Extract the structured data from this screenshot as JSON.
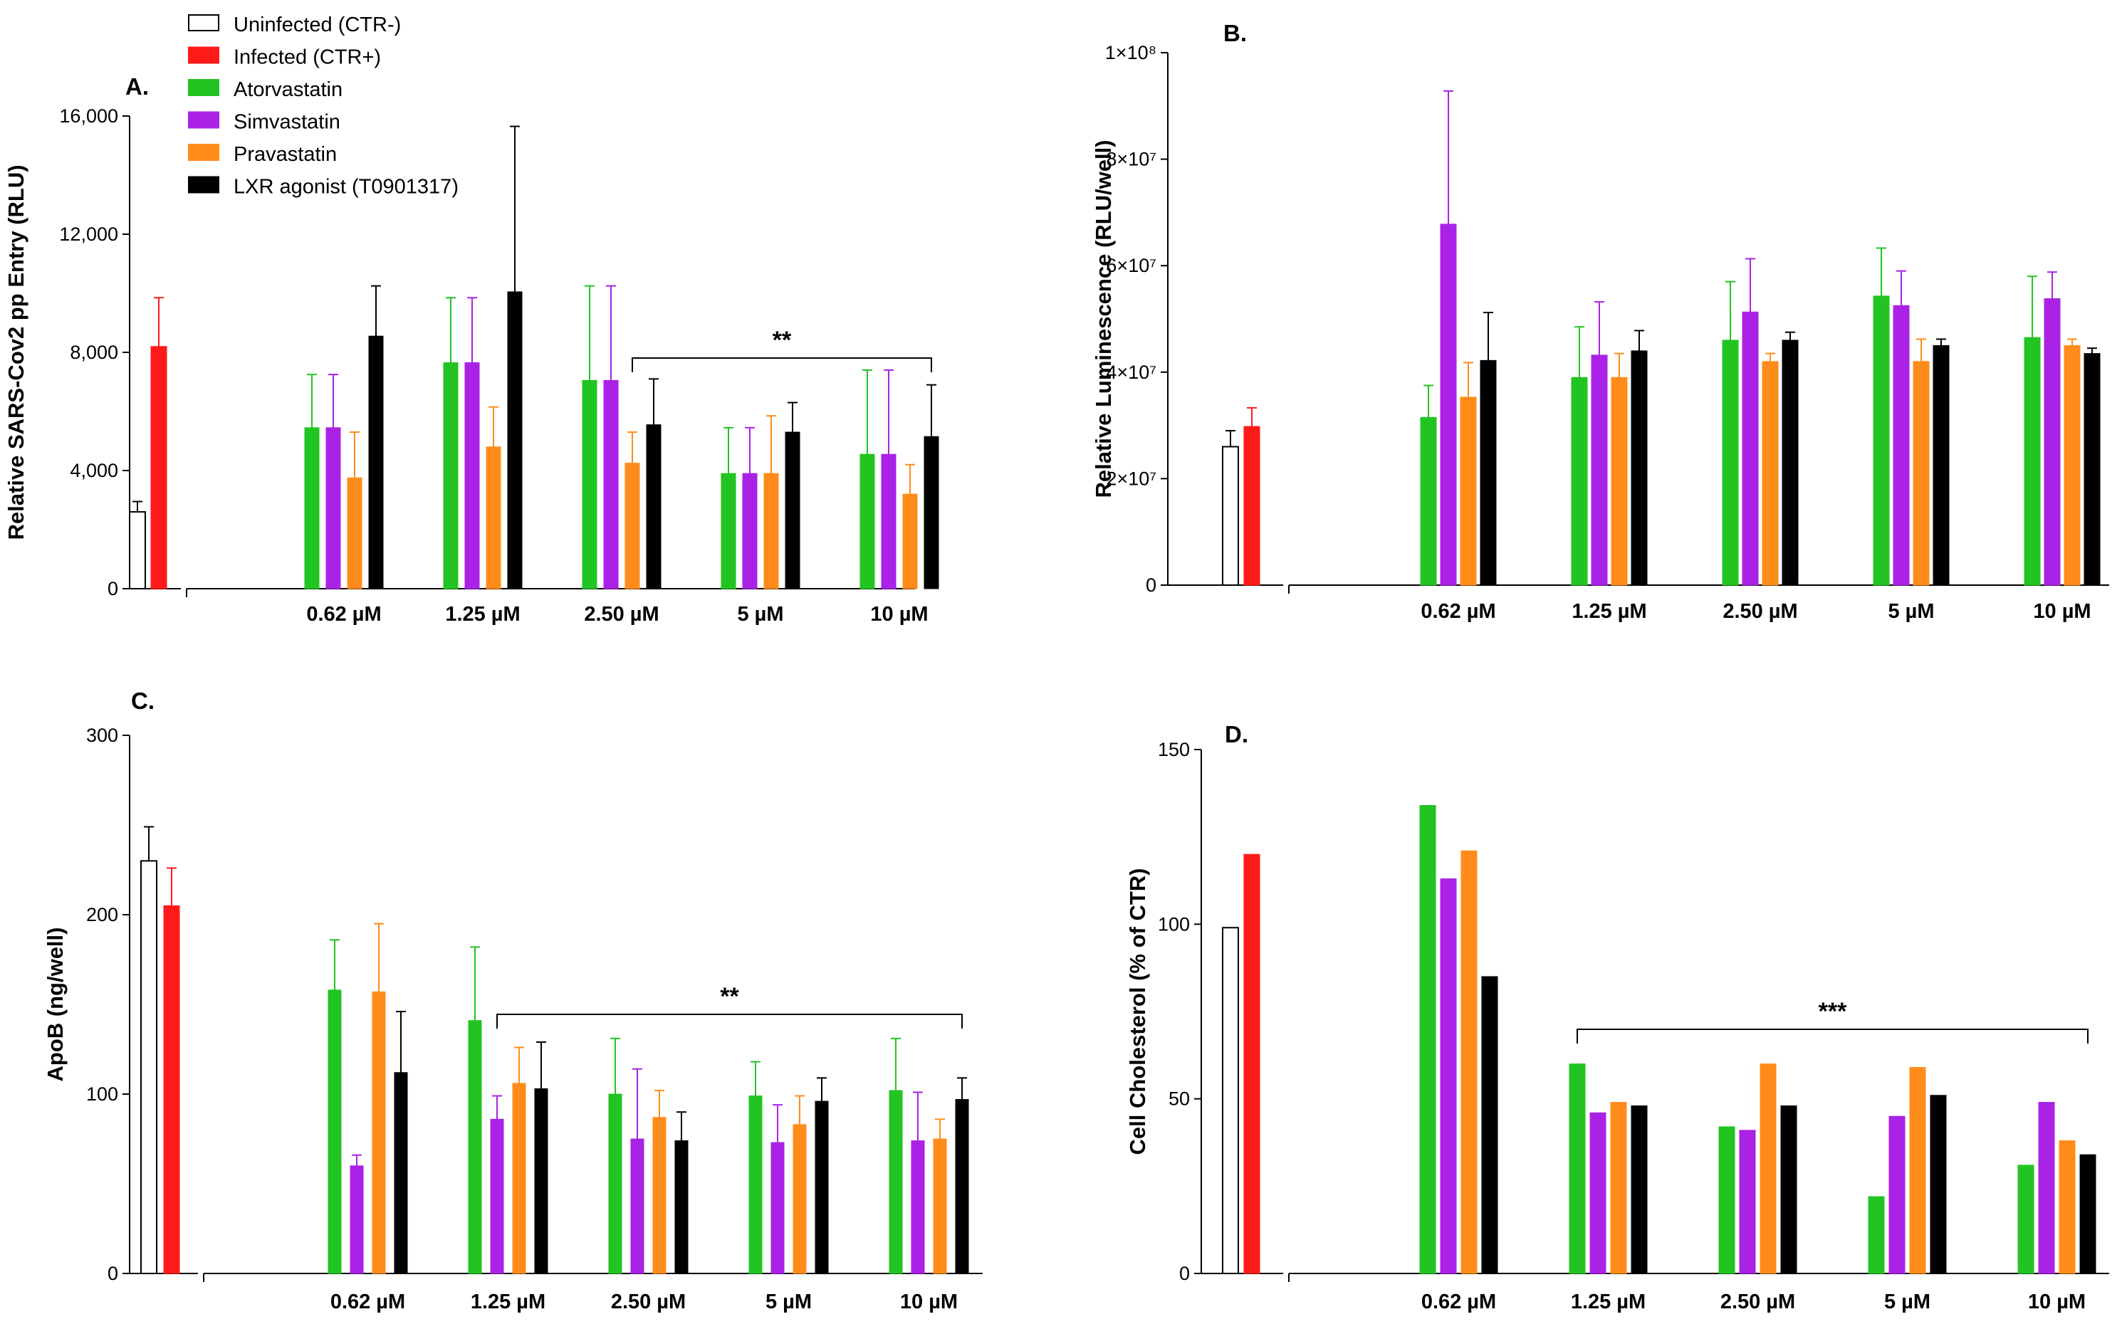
{
  "legend": [
    {
      "label": "Uninfected (CTR-)",
      "key": "ctr_minus"
    },
    {
      "label": "Infected (CTR+)",
      "key": "ctr_plus"
    },
    {
      "label": "Atorvastatin",
      "key": "atorvastatin"
    },
    {
      "label": "Simvastatin",
      "key": "simvastatin"
    },
    {
      "label": "Pravastatin",
      "key": "pravastatin"
    },
    {
      "label": "LXR agonist (T0901317)",
      "key": "lxr"
    }
  ],
  "colors": {
    "ctr_minus": "#ffffff",
    "ctr_plus": "#ff1a1a",
    "atorvastatin": "#22c422",
    "simvastatin": "#aa22e6",
    "pravastatin": "#ff8c1a",
    "lxr": "#000000"
  },
  "chart_data": [
    {
      "panel": "A.",
      "type": "bar",
      "ylabel": "Relative SARS-Cov2 pp Entry (RLU)",
      "ylim": [
        0,
        16000
      ],
      "yticks": [
        0,
        4000,
        8000,
        12000,
        16000
      ],
      "ytick_labels": [
        "0",
        "4,000",
        "8,000",
        "12,000",
        "16,000"
      ],
      "controls": [
        {
          "key": "ctr_minus",
          "value": 2600,
          "err": 350
        },
        {
          "key": "ctr_plus",
          "value": 8200,
          "err": 1650
        }
      ],
      "categories": [
        "0.62 µM",
        "1.25 µM",
        "2.50 µM",
        "5 µM",
        "10 µM"
      ],
      "series": [
        {
          "name": "Atorvastatin",
          "key": "atorvastatin",
          "values": [
            5450,
            7650,
            7050,
            3900,
            4550
          ],
          "errors": [
            1800,
            2200,
            3200,
            1550,
            2850
          ]
        },
        {
          "name": "Simvastatin",
          "key": "simvastatin",
          "values": [
            5450,
            7650,
            7050,
            3900,
            4550
          ],
          "errors": [
            1800,
            2200,
            3200,
            1550,
            2850
          ]
        },
        {
          "name": "Pravastatin",
          "key": "pravastatin",
          "values": [
            3750,
            4800,
            4250,
            3900,
            3200
          ],
          "errors": [
            1550,
            1350,
            1050,
            1950,
            1000
          ]
        },
        {
          "name": "LXR agonist (T0901317)",
          "key": "lxr",
          "values": [
            8550,
            10050,
            5550,
            5300,
            5150
          ],
          "errors": [
            1700,
            5600,
            1550,
            1000,
            1750
          ]
        }
      ],
      "significance": {
        "label": "**",
        "from_category": 2,
        "from_series": 2,
        "to_category": 4
      }
    },
    {
      "panel": "B.",
      "type": "bar",
      "ylabel": "Relative Luminescence (RLU/well)",
      "ylim": [
        0,
        100000000
      ],
      "yticks": [
        0,
        20000000,
        40000000,
        60000000,
        80000000,
        100000000
      ],
      "ytick_labels": [
        "0",
        "2×10⁷",
        "4×10⁷",
        "6×10⁷",
        "8×10⁷",
        "1×10⁸"
      ],
      "controls": [
        {
          "key": "ctr_minus",
          "value": 26000000,
          "err": 3000000
        },
        {
          "key": "ctr_plus",
          "value": 29800000,
          "err": 3500000
        }
      ],
      "categories": [
        "0.62 µM",
        "1.25 µM",
        "2.50 µM",
        "5 µM",
        "10 µM"
      ],
      "series": [
        {
          "name": "Atorvastatin",
          "key": "atorvastatin",
          "values": [
            31500000,
            39000000,
            46000000,
            54300000,
            46500000
          ],
          "errors": [
            6000000,
            9500000,
            11000000,
            9000000,
            11500000
          ]
        },
        {
          "name": "Simvastatin",
          "key": "simvastatin",
          "values": [
            67800000,
            43200000,
            51300000,
            52500000,
            53800000
          ],
          "errors": [
            25000000,
            10000000,
            10000000,
            6500000,
            5000000
          ]
        },
        {
          "name": "Pravastatin",
          "key": "pravastatin",
          "values": [
            35300000,
            39000000,
            42000000,
            42000000,
            45000000
          ],
          "errors": [
            6500000,
            4500000,
            1500000,
            4200000,
            1200000
          ]
        },
        {
          "name": "LXR agonist (T0901317)",
          "key": "lxr",
          "values": [
            42200000,
            44000000,
            46000000,
            45000000,
            43500000
          ],
          "errors": [
            9000000,
            3800000,
            1500000,
            1200000,
            1000000
          ]
        }
      ],
      "significance": null
    },
    {
      "panel": "C.",
      "type": "bar",
      "ylabel": "ApoB (ng/well)",
      "ylim": [
        0,
        300
      ],
      "yticks": [
        0,
        100,
        200,
        300
      ],
      "ytick_labels": [
        "0",
        "100",
        "200",
        "300"
      ],
      "controls": [
        {
          "key": "ctr_minus",
          "value": 230,
          "err": 19
        },
        {
          "key": "ctr_plus",
          "value": 205,
          "err": 21
        }
      ],
      "categories": [
        "0.62 µM",
        "1.25 µM",
        "2.50 µM",
        "5 µM",
        "10 µM"
      ],
      "series": [
        {
          "name": "Atorvastatin",
          "key": "atorvastatin",
          "values": [
            158,
            141,
            100,
            99,
            102
          ],
          "errors": [
            28,
            41,
            31,
            19,
            29
          ]
        },
        {
          "name": "Simvastatin",
          "key": "simvastatin",
          "values": [
            60,
            86,
            75,
            73,
            74
          ],
          "errors": [
            6,
            13,
            39,
            21,
            27
          ]
        },
        {
          "name": "Pravastatin",
          "key": "pravastatin",
          "values": [
            157,
            106,
            87,
            83,
            75
          ],
          "errors": [
            38,
            20,
            15,
            16,
            11
          ]
        },
        {
          "name": "LXR agonist (T0901317)",
          "key": "lxr",
          "values": [
            112,
            103,
            74,
            96,
            97
          ],
          "errors": [
            34,
            26,
            16,
            13,
            12
          ]
        }
      ],
      "significance": {
        "label": "**",
        "from_category": 1,
        "from_series": 1,
        "to_category": 4
      }
    },
    {
      "panel": "D.",
      "type": "bar",
      "ylabel": "Cell Cholesterol (% of CTR)",
      "ylim": [
        0,
        150
      ],
      "yticks": [
        0,
        50,
        100,
        150
      ],
      "ytick_labels": [
        "0",
        "50",
        "100",
        "150"
      ],
      "controls": [
        {
          "key": "ctr_minus",
          "value": 99,
          "err": null
        },
        {
          "key": "ctr_plus",
          "value": 120,
          "err": null
        }
      ],
      "categories": [
        "0.62 µM",
        "1.25 µM",
        "2.50 µM",
        "5 µM",
        "10 µM"
      ],
      "series": [
        {
          "name": "Atorvastatin",
          "key": "atorvastatin",
          "values": [
            134,
            60,
            42,
            22,
            31
          ],
          "errors": null
        },
        {
          "name": "Simvastatin",
          "key": "simvastatin",
          "values": [
            113,
            46,
            41,
            45,
            49
          ],
          "errors": null
        },
        {
          "name": "Pravastatin",
          "key": "pravastatin",
          "values": [
            121,
            49,
            60,
            59,
            38
          ],
          "errors": null
        },
        {
          "name": "LXR agonist (T0901317)",
          "key": "lxr",
          "values": [
            85,
            48,
            48,
            51,
            34
          ],
          "errors": null
        }
      ],
      "significance": {
        "label": "***",
        "from_category": 1,
        "from_series": 0,
        "to_category": 4
      }
    }
  ]
}
